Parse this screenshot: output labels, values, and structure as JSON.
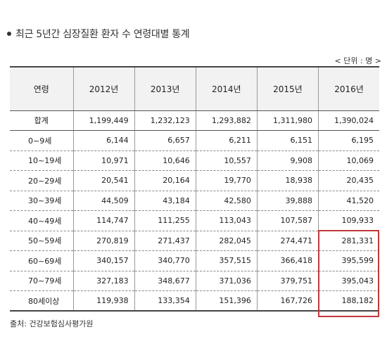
{
  "title": "최근 5년간 심장질환 환자 수 연령대별 통계",
  "unit": "< 단위 : 명 >",
  "table": {
    "headers": [
      "연령",
      "2012년",
      "2013년",
      "2014년",
      "2015년",
      "2016년"
    ],
    "rows": [
      [
        "합계",
        "1,199,449",
        "1,232,123",
        "1,293,882",
        "1,311,980",
        "1,390,024"
      ],
      [
        "0~9세",
        "6,144",
        "6,657",
        "6,211",
        "6,151",
        "6,195"
      ],
      [
        "10~19세",
        "10,971",
        "10,646",
        "10,557",
        "9,908",
        "10,069"
      ],
      [
        "20~29세",
        "20,541",
        "20,164",
        "19,770",
        "18,938",
        "20,435"
      ],
      [
        "30~39세",
        "44,509",
        "43,184",
        "42,580",
        "39,888",
        "41,520"
      ],
      [
        "40~49세",
        "114,747",
        "111,255",
        "113,043",
        "107,587",
        "109,933"
      ],
      [
        "50~59세",
        "270,819",
        "271,437",
        "282,045",
        "274,471",
        "281,331"
      ],
      [
        "60~69세",
        "340,157",
        "340,770",
        "357,515",
        "366,418",
        "395,599"
      ],
      [
        "70~79세",
        "327,183",
        "348,677",
        "371,036",
        "379,751",
        "395,043"
      ],
      [
        "80세이상",
        "119,938",
        "133,354",
        "151,396",
        "167,726",
        "188,182"
      ]
    ]
  },
  "source": "출처: 건강보험심사평가원",
  "colors": {
    "highlight": "#c0393b"
  }
}
